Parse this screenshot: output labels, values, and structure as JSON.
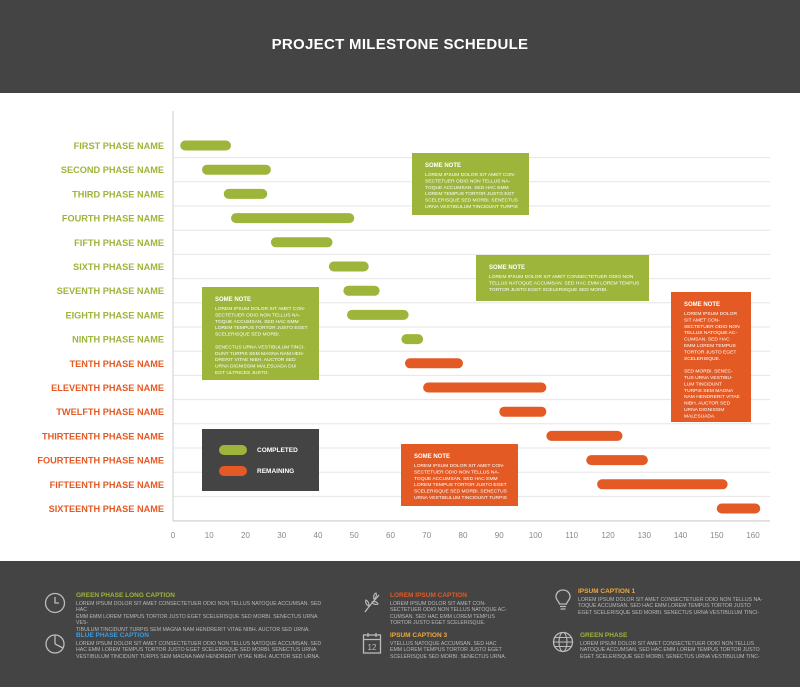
{
  "header": {
    "title": "PROJECT MILESTONE SCHEDULE"
  },
  "colors": {
    "completed": "#9db53a",
    "remaining": "#e35a25",
    "header_bg": "#444444",
    "footer_bg": "#444444"
  },
  "chart_data": {
    "type": "gantt",
    "xlim": [
      0,
      160
    ],
    "x_ticks": [
      0,
      10,
      20,
      30,
      40,
      50,
      60,
      70,
      80,
      90,
      100,
      110,
      120,
      130,
      140,
      150,
      160
    ],
    "grid": true,
    "tasks": [
      {
        "name": "FIRST PHASE NAME",
        "start": 2,
        "end": 16,
        "status": "completed"
      },
      {
        "name": "SECOND PHASE NAME",
        "start": 8,
        "end": 27,
        "status": "completed"
      },
      {
        "name": "THIRD PHASE NAME",
        "start": 14,
        "end": 26,
        "status": "completed"
      },
      {
        "name": "FOURTH PHASE NAME",
        "start": 16,
        "end": 50,
        "status": "completed"
      },
      {
        "name": "FIFTH PHASE NAME",
        "start": 27,
        "end": 44,
        "status": "completed"
      },
      {
        "name": "SIXTH PHASE NAME",
        "start": 43,
        "end": 54,
        "status": "completed"
      },
      {
        "name": "SEVENTH PHASE NAME",
        "start": 47,
        "end": 57,
        "status": "completed"
      },
      {
        "name": "EIGHTH PHASE NAME",
        "start": 48,
        "end": 65,
        "status": "completed"
      },
      {
        "name": "NINTH PHASE NAME",
        "start": 63,
        "end": 69,
        "status": "completed"
      },
      {
        "name": "TENTH PHASE NAME",
        "start": 64,
        "end": 80,
        "status": "remaining"
      },
      {
        "name": "ELEVENTH PHASE NAME",
        "start": 69,
        "end": 103,
        "status": "remaining"
      },
      {
        "name": "TWELFTH PHASE NAME",
        "start": 90,
        "end": 103,
        "status": "remaining"
      },
      {
        "name": "THIRTEENTH PHASE NAME",
        "start": 103,
        "end": 124,
        "status": "remaining"
      },
      {
        "name": "FOURTEENTH PHASE NAME",
        "start": 114,
        "end": 131,
        "status": "remaining"
      },
      {
        "name": "FIFTEENTH PHASE NAME",
        "start": 117,
        "end": 153,
        "status": "remaining"
      },
      {
        "name": "SIXTEENTH PHASE NAME",
        "start": 150,
        "end": 162,
        "status": "remaining"
      }
    ],
    "legend": {
      "position": "bottom-left",
      "completed": "COMPLETED",
      "remaining": "REMAINING"
    },
    "notes": [
      {
        "title": "SOME NOTE",
        "color": "completed",
        "lines": [
          "LOREM IPSUM DOLOR SIT AMET CON-",
          "SECTETUER ODIO NON TELLUS NA-",
          "TOQUE ACCUMSAN. SED HAC EMM",
          "LOREM TEMPUS TORTOR JUSTO EGT",
          "SCELERISQUE SED MORBI. SENECTUS",
          "URNA VESTIBULUM TINCIDUNT TURPIS"
        ]
      },
      {
        "title": "SOME NOTE",
        "color": "completed",
        "lines": [
          "LOREM IPSUM DOLOR SIT AMET CONSECTETUER ODIO NON",
          "TELLUS NATOQUE ACCUMSAN. SED HAC EMM LOREM TEMPUS",
          "TORTOR JUSTO EGET SCELERISQUE SED MORBI."
        ]
      },
      {
        "title": "SOME NOTE",
        "color": "completed",
        "lines": [
          "LOREM IPSUM DOLOR SIT AMET CON-",
          "SECTETUER ODIO NON TELLUS NA-",
          "TOQUE ACCUMSAN. SED HAC EMM",
          "LOREM TEMPUS TORTOR JUSTO EGET",
          "SCELERISQUE SED MORBI.",
          "",
          "SENECTUS URNA VESTIBULUM TINCI-",
          "DUNT TURPIS SEM MAGNA NAM HEN-",
          "DRERIT VITAE NIBH. AUCTOR SED",
          "URNA DIGNISSIM MALESUADA DUI",
          "EGT ULTRICES JUSTO."
        ]
      },
      {
        "title": "SOME NOTE",
        "color": "remaining",
        "lines": [
          "LOREM IPSUM DOLOR SIT AMET CON-",
          "SECTETUER ODIO NON TELLUS NA-",
          "TOQUE ACCUMSAN. SED HAC EMM",
          "LOREM TEMPUS TORTOR JUSTO EGET",
          "SCELERISQUE SED MORBI. SENECTUS",
          "URNA VESTIBULUM TINCIDUNT TURPIS"
        ]
      },
      {
        "title": "SOME NOTE",
        "color": "remaining",
        "lines": [
          "LOREM IPSUM DOLOR",
          "SIT AMET CON-",
          "SECTETUER ODIO NON",
          "TELLUS NATOQUE AC-",
          "CUMSAN. SED HAC",
          "EMM LOREM TEMPUS",
          "TORTOR JUSTO EGET",
          "SCELERISQUE.",
          "",
          "SED MORBI. SENEC-",
          "TUS URNA VESTIBU-",
          "LUM TINCIDUNT",
          "TURPIS SEM MAGNA",
          "NAM HENDRERIT VITAE",
          "NIBH. AUCTOR SED",
          "URNA DIGNISSIM",
          "MALESUADA."
        ]
      }
    ]
  },
  "footer": {
    "captions": [
      {
        "icon": "clock-icon",
        "color": "#9db53a",
        "title": "GREEN PHASE LONG CAPTION",
        "lines": [
          "LOREM IPSUM DOLOR SIT AMET CONSECTETUER ODIO NON TELLUS NATOQUE ACCUMSAN. SED HAC",
          "EMM EMM LOREM TEMPUS TORTOR JUSTO EGET SCELERISQUE SED MORBI. SENECTUS URNA VES-",
          "TIBULUM TINCIDUNT TURPIS SEM MAGNA NAM HENDRERIT VITAE NIBH. AUCTOR SED URNA."
        ]
      },
      {
        "icon": "plant-icon",
        "color": "#e35a25",
        "title": "LOREM IPSUM CAPTION",
        "lines": [
          "LOREM IPSUM DOLOR SIT AMET CON-",
          "SECTETUER ODIO NON TELLUS NATOQUE AC-",
          "CUMSAN. SED HAC EMM LOREM TEMPUS",
          "TORTOR JUSTO EGET SCELERISQUE."
        ]
      },
      {
        "icon": "lightbulb-icon",
        "color": "#f2a93b",
        "title": "IPSUM CAPTION 1",
        "lines": [
          "LOREM IPSUM DOLOR SIT AMET CONSECTETUER ODIO NON TELLUS NA-",
          "TOQUE ACCUMSAN. SED HAC EMM LOREM TEMPUS TORTOR JUSTO",
          "EGET SCELERISQUE SED MORBI. SENECTUS URNA VESTIBULUM TINCI-"
        ]
      },
      {
        "icon": "pie-chart-icon",
        "color": "#3d9be0",
        "title": "BLUE PHASE CAPTION",
        "lines": [
          "LOREM IPSUM DOLOR SIT AMET CONSECTETUER ODIO NON TELLUS NATOQUE ACCUMSAN. SED",
          "HAC EMM LOREM TEMPUS TORTOR JUSTO EGET SCELERISQUE SED MORBI. SENECTUS URNA",
          "VESTIBULUM TINCIDUNT TURPIS SEM MAGNA NAM HENDRERIT VITAE NIBH. AUCTOR SED URNA."
        ]
      },
      {
        "icon": "calendar-icon",
        "color": "#f2a93b",
        "title": "IPSUM CAPTION 3",
        "lines": [
          "VTELLUS NATOQUE ACCUMSAN. SED HAC",
          "EMM LOREM TEMPUS TORTOR JUSTO EGET",
          "SCELERISQUE SED MORBI. SENECTUS URNA."
        ]
      },
      {
        "icon": "globe-icon",
        "color": "#9db53a",
        "title": "GREEN PHASE",
        "lines": [
          "LOREM IPSUM DOLOR SIT AMET CONSECTETUER ODIO NON TELLUS",
          "NATOQUE ACCUMSAN. SED HAC EMM LOREM TEMPUS TORTOR JUSTO",
          "EGET SCELERISQUE SED MORBI. SENECTUS URNA VESTIBULUM TINC-"
        ]
      }
    ],
    "calendar_day": "12"
  }
}
